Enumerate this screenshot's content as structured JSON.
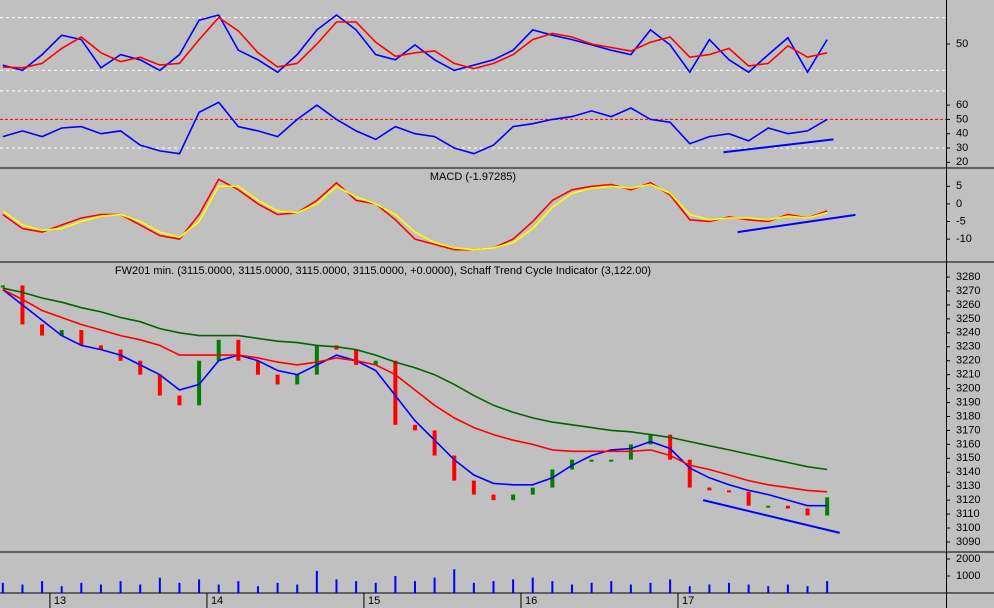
{
  "chart_data": [
    {
      "type": "line",
      "x": [
        -0.3,
        -0.175,
        -0.05,
        0.075,
        0.2,
        0.325,
        0.45,
        0.575,
        0.7,
        0.825,
        0.95,
        1.075,
        1.2,
        1.325,
        1.45,
        1.575,
        1.7,
        1.825,
        1.95,
        2.075,
        2.2,
        2.325,
        2.45,
        2.575,
        2.7,
        2.825,
        2.95,
        3.075,
        3.2,
        3.325,
        3.45,
        3.575,
        3.7,
        3.825,
        3.95,
        4.075,
        4.2,
        4.325,
        4.45,
        4.575,
        4.7,
        4.825,
        4.95
      ],
      "xlim": [
        -0.318,
        5.707
      ],
      "ylim": [
        0,
        100
      ],
      "yticks": [
        50
      ],
      "levels": [
        20,
        80
      ],
      "level_color": "#ffffff",
      "series": [
        {
          "color": "#0000ff",
          "values": [
            26,
            20,
            38,
            60,
            55,
            23,
            38,
            32,
            20,
            38,
            77,
            83,
            43,
            32,
            18,
            38,
            66,
            83,
            66,
            38,
            32,
            49,
            32,
            20,
            26,
            32,
            43,
            66,
            60,
            55,
            49,
            43,
            38,
            66,
            49,
            18,
            55,
            32,
            18,
            38,
            57,
            18,
            55
          ]
        },
        {
          "color": "#ff0000",
          "values": [
            24,
            23,
            28,
            45,
            58,
            40,
            30,
            35,
            26,
            28,
            55,
            80,
            65,
            40,
            24,
            28,
            50,
            75,
            75,
            52,
            36,
            40,
            42,
            28,
            22,
            28,
            38,
            55,
            62,
            58,
            50,
            46,
            42,
            52,
            58,
            35,
            38,
            45,
            25,
            28,
            48,
            35,
            40
          ]
        }
      ]
    },
    {
      "type": "line",
      "x": [
        -0.3,
        -0.175,
        -0.05,
        0.075,
        0.2,
        0.325,
        0.45,
        0.575,
        0.7,
        0.825,
        0.95,
        1.075,
        1.2,
        1.325,
        1.45,
        1.575,
        1.7,
        1.825,
        1.95,
        2.075,
        2.2,
        2.325,
        2.45,
        2.575,
        2.7,
        2.825,
        2.95,
        3.075,
        3.2,
        3.325,
        3.45,
        3.575,
        3.7,
        3.825,
        3.95,
        4.075,
        4.2,
        4.325,
        4.45,
        4.575,
        4.7,
        4.825,
        4.95
      ],
      "xlim": [
        -0.318,
        5.707
      ],
      "ylim": [
        16,
        72
      ],
      "yticks": [
        60,
        50,
        40,
        30,
        20
      ],
      "levels": [
        30,
        70
      ],
      "level_color": "#ffffff",
      "midline": {
        "value": 50,
        "color": "#ff0000"
      },
      "series": [
        {
          "color": "#0000ff",
          "values": [
            38,
            42,
            38,
            44,
            45,
            40,
            42,
            32,
            28,
            26,
            55,
            62,
            45,
            42,
            38,
            50,
            60,
            50,
            42,
            36,
            45,
            40,
            38,
            30,
            26,
            32,
            45,
            47,
            50,
            52,
            56,
            52,
            58,
            50,
            48,
            33,
            38,
            40,
            35,
            44,
            40,
            42,
            50
          ]
        }
      ],
      "trendline": {
        "color": "#0000ff",
        "x": [
          4.29,
          4.99
        ],
        "y": [
          27,
          36
        ]
      }
    },
    {
      "type": "line",
      "title": "MACD (-1.97285)",
      "x": [
        -0.3,
        -0.175,
        -0.05,
        0.075,
        0.2,
        0.325,
        0.45,
        0.575,
        0.7,
        0.825,
        0.95,
        1.075,
        1.2,
        1.325,
        1.45,
        1.575,
        1.7,
        1.825,
        1.95,
        2.075,
        2.2,
        2.325,
        2.45,
        2.575,
        2.7,
        2.825,
        2.95,
        3.075,
        3.2,
        3.325,
        3.45,
        3.575,
        3.7,
        3.825,
        3.95,
        4.075,
        4.2,
        4.325,
        4.45,
        4.575,
        4.7,
        4.825,
        4.95
      ],
      "xlim": [
        -0.318,
        5.707
      ],
      "ylim": [
        -16.5,
        10.2
      ],
      "yticks": [
        5,
        0,
        -5,
        -10
      ],
      "series": [
        {
          "color": "#ff0000",
          "values": [
            -3,
            -7,
            -8,
            -6,
            -4,
            -3,
            -3,
            -6,
            -9,
            -10,
            -3,
            7,
            4,
            0,
            -3,
            -2.5,
            1,
            6,
            1,
            0,
            -4.5,
            -10,
            -11.5,
            -13,
            -13,
            -12.5,
            -10,
            -5,
            1,
            4,
            5,
            5.5,
            4,
            6,
            2.5,
            -4.5,
            -5,
            -3.7,
            -4.5,
            -5,
            -3,
            -4,
            -2
          ]
        },
        {
          "color": "#ffff00",
          "values": [
            -2,
            -6,
            -7.5,
            -7,
            -5,
            -3.5,
            -3,
            -5,
            -8,
            -9.5,
            -5,
            5,
            5,
            1,
            -2,
            -2.5,
            0,
            5,
            2,
            0,
            -3,
            -8,
            -11,
            -12.5,
            -13,
            -12.5,
            -11,
            -7,
            -1,
            3,
            4.5,
            5,
            4.5,
            5.5,
            3,
            -3,
            -4.5,
            -4,
            -4,
            -4.5,
            -3.5,
            -4,
            -2.5
          ]
        }
      ],
      "trendline": {
        "color": "#0000ff",
        "x": [
          4.38,
          5.13
        ],
        "y": [
          -8,
          -3.1
        ]
      }
    },
    {
      "type": "line",
      "title": "FW201 min. (3115.0000, 3115.0000, 3115.0000, 3115.0000, +0.0000), Schaff Trend Cycle Indicator (3,122.00)",
      "x": [
        -0.3,
        -0.175,
        -0.05,
        0.075,
        0.2,
        0.325,
        0.45,
        0.575,
        0.7,
        0.825,
        0.95,
        1.075,
        1.2,
        1.325,
        1.45,
        1.575,
        1.7,
        1.825,
        1.95,
        2.075,
        2.2,
        2.325,
        2.45,
        2.575,
        2.7,
        2.825,
        2.95,
        3.075,
        3.2,
        3.325,
        3.45,
        3.575,
        3.7,
        3.825,
        3.95,
        4.075,
        4.2,
        4.325,
        4.45,
        4.575,
        4.7,
        4.825,
        4.95
      ],
      "xlim": [
        -0.318,
        5.707
      ],
      "ylim": [
        3082.8,
        3290.8
      ],
      "yticks": [
        3280,
        3270,
        3260,
        3250,
        3240,
        3230,
        3220,
        3210,
        3200,
        3190,
        3180,
        3170,
        3160,
        3150,
        3140,
        3130,
        3120,
        3110,
        3100,
        3090
      ],
      "up_color": "#008000",
      "down_color": "#ff0000",
      "series": [
        {
          "kind": "candle",
          "values": [
            3274,
            3246,
            3238,
            3242,
            3231,
            3228,
            3220,
            3210,
            3195,
            3188,
            3220,
            3235,
            3220,
            3210,
            3203,
            3210,
            3231,
            3228,
            3217,
            3220,
            3174,
            3170,
            3152,
            3134,
            3124,
            3120,
            3124,
            3129,
            3142,
            3149,
            3149,
            3149,
            3160,
            3167,
            3149,
            3129,
            3127,
            3126,
            3116,
            3116,
            3114,
            3109,
            3122
          ]
        },
        {
          "color": "#0000ff",
          "values": [
            3271,
            3260,
            3249,
            3238,
            3231,
            3228,
            3224,
            3217,
            3210,
            3199,
            3203,
            3220,
            3224,
            3220,
            3213,
            3210,
            3217,
            3224,
            3220,
            3213,
            3195,
            3177,
            3163,
            3149,
            3138,
            3132,
            3131,
            3131,
            3136,
            3145,
            3152,
            3156,
            3157,
            3162,
            3157,
            3143,
            3136,
            3131,
            3127,
            3124,
            3120,
            3116,
            3116
          ]
        },
        {
          "color": "#ff0000",
          "values": [
            3271,
            3264,
            3256,
            3251,
            3246,
            3242,
            3238,
            3235,
            3231,
            3224,
            3224,
            3224,
            3224,
            3222,
            3219,
            3217,
            3219,
            3222,
            3220,
            3217,
            3210,
            3199,
            3188,
            3179,
            3172,
            3167,
            3163,
            3160,
            3156,
            3155,
            3155,
            3155,
            3155,
            3156,
            3152,
            3145,
            3142,
            3138,
            3134,
            3131,
            3129,
            3127,
            3126
          ]
        },
        {
          "color": "#006400",
          "values": [
            3272,
            3269,
            3265,
            3262,
            3258,
            3255,
            3251,
            3248,
            3243,
            3240,
            3238,
            3238,
            3238,
            3236,
            3234,
            3233,
            3231,
            3230,
            3228,
            3224,
            3219,
            3215,
            3210,
            3203,
            3195,
            3188,
            3183,
            3179,
            3176,
            3174,
            3172,
            3170,
            3169,
            3167,
            3165,
            3162,
            3159,
            3156,
            3153,
            3150,
            3147,
            3144,
            3142
          ]
        }
      ],
      "trendline": {
        "color": "#0000ff",
        "x": [
          4.16,
          5.03
        ],
        "y": [
          3120,
          3096.5
        ]
      }
    },
    {
      "type": "bar",
      "x": [
        -0.3,
        -0.175,
        -0.05,
        0.075,
        0.2,
        0.325,
        0.45,
        0.575,
        0.7,
        0.825,
        0.95,
        1.075,
        1.2,
        1.325,
        1.45,
        1.575,
        1.7,
        1.825,
        1.95,
        2.075,
        2.2,
        2.325,
        2.45,
        2.575,
        2.7,
        2.825,
        2.95,
        3.075,
        3.2,
        3.325,
        3.45,
        3.575,
        3.7,
        3.825,
        3.95,
        4.075,
        4.2,
        4.325,
        4.45,
        4.575,
        4.7,
        4.825,
        4.95
      ],
      "xlim": [
        -0.318,
        5.707
      ],
      "ylim": [
        0,
        2412
      ],
      "yticks": [
        2000,
        1000
      ],
      "color": "#0000ff",
      "values": [
        600,
        500,
        700,
        400,
        600,
        500,
        700,
        500,
        900,
        600,
        800,
        500,
        700,
        400,
        600,
        500,
        1300,
        800,
        700,
        600,
        1000,
        700,
        900,
        1400,
        600,
        700,
        800,
        900,
        700,
        500,
        600,
        700,
        500,
        600,
        800,
        400,
        500,
        600,
        500,
        400,
        500,
        400,
        700
      ],
      "xticks": [
        {
          "value": 0,
          "label": "13"
        },
        {
          "value": 1,
          "label": "14"
        },
        {
          "value": 2,
          "label": "15"
        },
        {
          "value": 3,
          "label": "16"
        },
        {
          "value": 4,
          "label": "17"
        }
      ]
    }
  ]
}
